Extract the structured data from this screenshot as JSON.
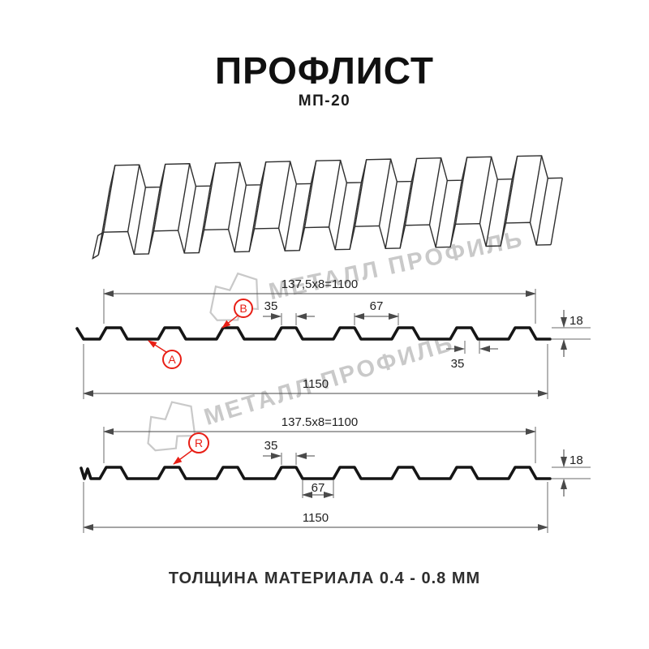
{
  "page": {
    "title": "ПРОФЛИСТ",
    "subtitle": "МП-20",
    "footer_note": "ТОЛЩИНА МАТЕРИАЛА 0.4 - 0.8 ММ"
  },
  "watermark": {
    "text": "МЕТАЛЛ ПРОФИЛЬ"
  },
  "colors": {
    "accent_red": "#e81e15",
    "line_black": "#151515",
    "dim_gray": "#4a4a4a",
    "watermark_gray": "#c9c9c9"
  },
  "profile_views": {
    "front": {
      "pitch_total": "137,5x8=1100",
      "rib_top_width": "35",
      "rib_gap_width": "67",
      "profile_height": "18",
      "overlap_width": "35",
      "overall_width": "1150",
      "marker_a": "A",
      "marker_b": "B"
    },
    "reverse": {
      "pitch_total": "137.5x8=1100",
      "rib_top_width": "35",
      "rib_gap_width": "67",
      "profile_height": "18",
      "overall_width": "1150",
      "marker_r": "R"
    }
  }
}
